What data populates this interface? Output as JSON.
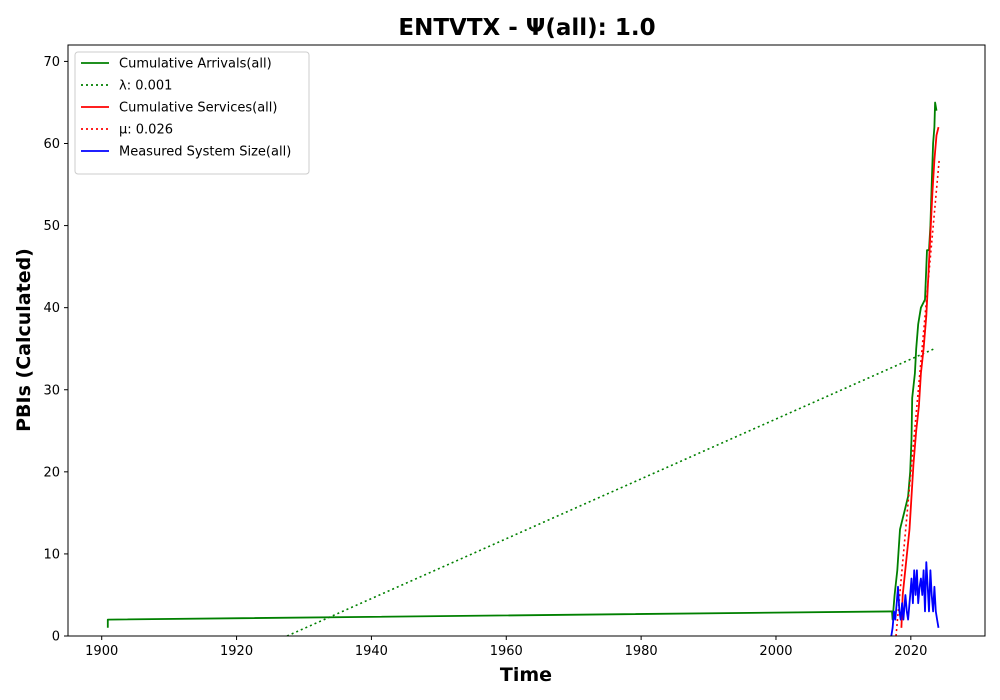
{
  "chart_data": {
    "type": "line",
    "title": "ENTVTX -  Ψ(all): 1.0",
    "xlabel": "Time",
    "ylabel": "PBIs (Calculated)",
    "xlim": [
      1895,
      2031
    ],
    "ylim": [
      0,
      72
    ],
    "xticks": [
      1900,
      1920,
      1940,
      1960,
      1980,
      2000,
      2020
    ],
    "yticks": [
      0,
      10,
      20,
      30,
      40,
      50,
      60,
      70
    ],
    "grid": false,
    "legend_position": "top-left",
    "series": [
      {
        "name": "Cumulative Arrivals(all)",
        "style": "solid",
        "color": "#008000",
        "points": [
          [
            1900.9,
            1
          ],
          [
            1900.9,
            2
          ],
          [
            2017.2,
            3
          ],
          [
            2017.3,
            2
          ],
          [
            2017.6,
            5
          ],
          [
            2018.0,
            8
          ],
          [
            2018.4,
            13
          ],
          [
            2019.0,
            15
          ],
          [
            2019.6,
            17
          ],
          [
            2019.9,
            20
          ],
          [
            2020.1,
            24
          ],
          [
            2020.2,
            29
          ],
          [
            2020.6,
            32
          ],
          [
            2020.8,
            35
          ],
          [
            2021.1,
            38
          ],
          [
            2021.5,
            40
          ],
          [
            2022.1,
            41
          ],
          [
            2022.4,
            47
          ],
          [
            2022.7,
            47
          ],
          [
            2022.9,
            50
          ],
          [
            2023.1,
            55
          ],
          [
            2023.3,
            60
          ],
          [
            2023.5,
            62
          ],
          [
            2023.6,
            65
          ],
          [
            2023.8,
            64
          ]
        ]
      },
      {
        "name": "λ: 0.001",
        "style": "dotted",
        "color": "#008000",
        "points": [
          [
            1927.5,
            0
          ],
          [
            2023.5,
            35
          ]
        ]
      },
      {
        "name": "Cumulative Services(all)",
        "style": "solid",
        "color": "#ff0000",
        "points": [
          [
            2018.6,
            1
          ],
          [
            2018.8,
            5
          ],
          [
            2019.3,
            9
          ],
          [
            2019.8,
            13
          ],
          [
            2020.1,
            17
          ],
          [
            2020.4,
            21
          ],
          [
            2020.8,
            25
          ],
          [
            2021.2,
            28
          ],
          [
            2021.5,
            32
          ],
          [
            2021.9,
            35
          ],
          [
            2022.3,
            39
          ],
          [
            2022.6,
            44
          ],
          [
            2022.9,
            49
          ],
          [
            2023.2,
            54
          ],
          [
            2023.5,
            58
          ],
          [
            2023.8,
            61
          ],
          [
            2024.1,
            62
          ]
        ]
      },
      {
        "name": "μ: 0.026",
        "style": "dotted",
        "color": "#ff0000",
        "points": [
          [
            2017.8,
            0
          ],
          [
            2024.2,
            58
          ]
        ]
      },
      {
        "name": "Measured System Size(all)",
        "style": "solid",
        "color": "#0000ff",
        "points": [
          [
            2017.1,
            0
          ],
          [
            2017.3,
            1
          ],
          [
            2017.5,
            3
          ],
          [
            2017.7,
            2
          ],
          [
            2017.9,
            4
          ],
          [
            2018.1,
            6
          ],
          [
            2018.3,
            3
          ],
          [
            2018.5,
            2
          ],
          [
            2018.7,
            4
          ],
          [
            2018.9,
            2
          ],
          [
            2019.2,
            5
          ],
          [
            2019.4,
            3
          ],
          [
            2019.6,
            2
          ],
          [
            2019.9,
            5
          ],
          [
            2020.1,
            7
          ],
          [
            2020.3,
            4
          ],
          [
            2020.5,
            8
          ],
          [
            2020.7,
            5
          ],
          [
            2020.9,
            8
          ],
          [
            2021.1,
            4
          ],
          [
            2021.3,
            6
          ],
          [
            2021.5,
            7
          ],
          [
            2021.7,
            5
          ],
          [
            2021.9,
            8
          ],
          [
            2022.1,
            3
          ],
          [
            2022.3,
            9
          ],
          [
            2022.5,
            6
          ],
          [
            2022.7,
            3
          ],
          [
            2022.9,
            8
          ],
          [
            2023.1,
            5
          ],
          [
            2023.3,
            3
          ],
          [
            2023.5,
            6
          ],
          [
            2023.7,
            3
          ],
          [
            2023.9,
            2
          ],
          [
            2024.1,
            1
          ]
        ]
      }
    ]
  }
}
